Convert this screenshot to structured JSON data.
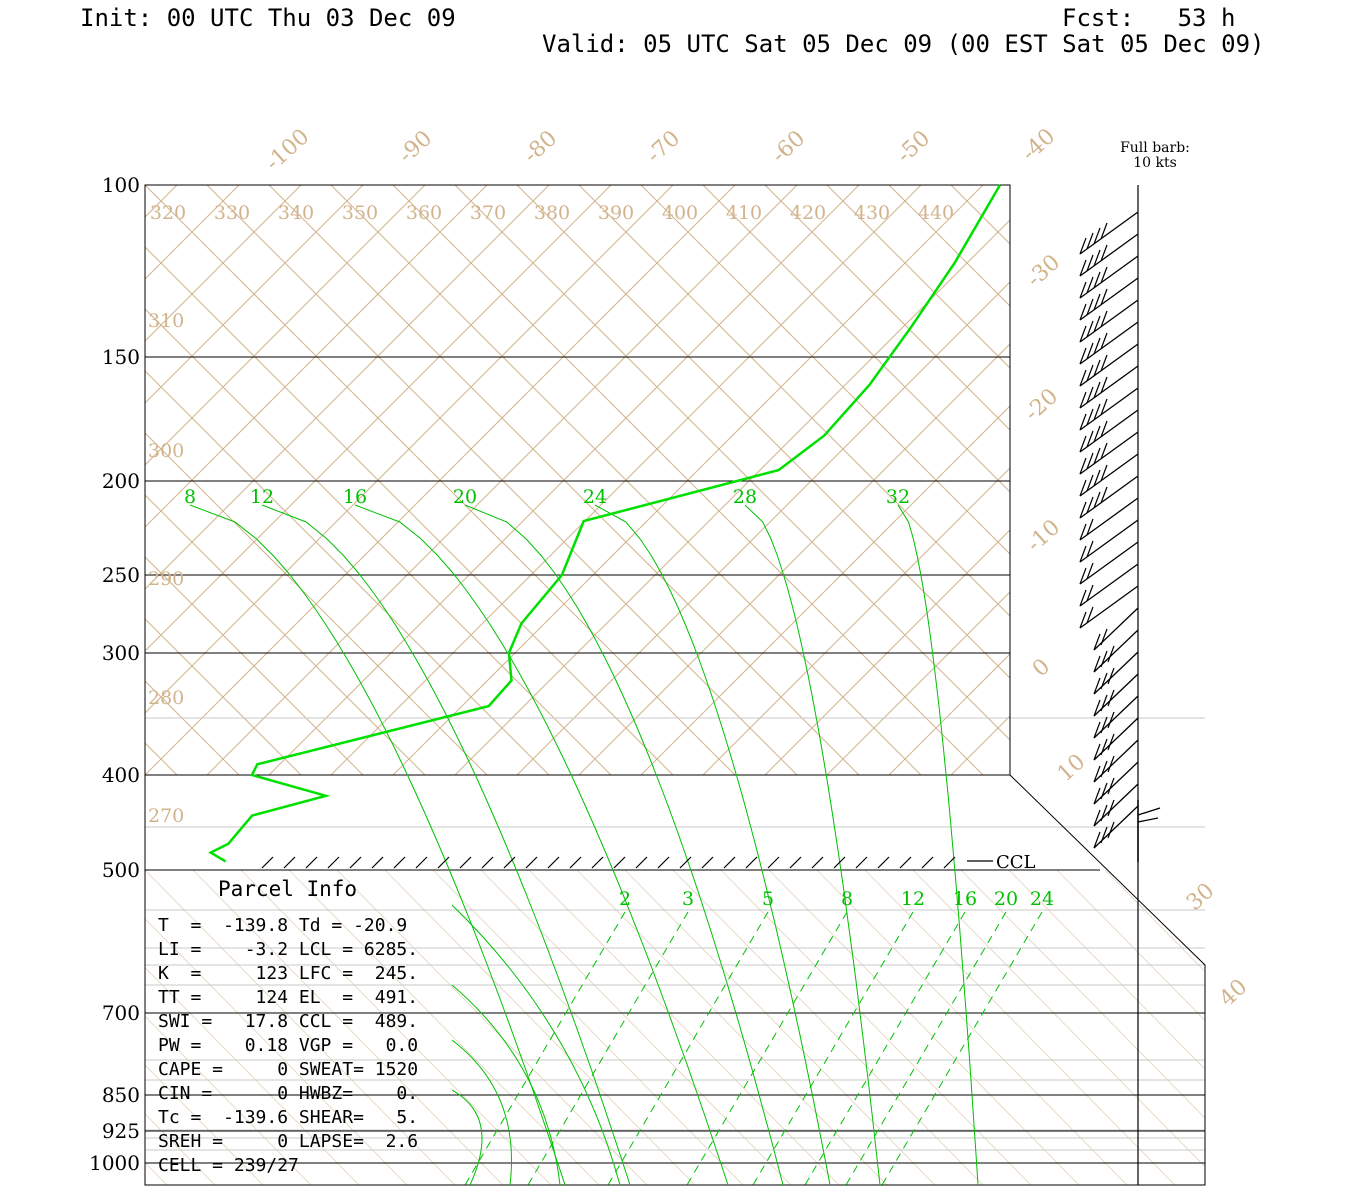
{
  "header": {
    "init": "Init: 00 UTC Thu 03 Dec 09",
    "fcst": "Fcst:   53 h",
    "valid": "Valid: 05 UTC Sat 05 Dec 09 (00 EST Sat 05 Dec 09)"
  },
  "colors": {
    "sounding": "#00e000",
    "mixing_ratio": "#00c000",
    "background_lines": "#d2b48c",
    "axis": "#000000"
  },
  "chart_data": {
    "type": "line",
    "chart_kind": "skew-T log-p sounding",
    "pressure_levels": [
      100,
      150,
      200,
      250,
      300,
      400,
      500,
      700,
      850,
      925,
      1000
    ],
    "pressure_range": [
      100,
      1000
    ],
    "temperature_labels": [
      -100,
      -90,
      -80,
      -70,
      -60,
      -50,
      -40,
      -30,
      -20,
      -10,
      0,
      10,
      30,
      40
    ],
    "theta_top_labels": [
      320,
      330,
      340,
      350,
      360,
      370,
      380,
      390,
      400,
      410,
      420,
      430,
      440
    ],
    "theta_left_labels": [
      310,
      300,
      290,
      280,
      270
    ],
    "moist_adiabat_labels": [
      8,
      12,
      16,
      20,
      24,
      28,
      32
    ],
    "mixing_ratio_labels": [
      2,
      3,
      5,
      8,
      12,
      16,
      20,
      24
    ],
    "barb_legend_line1": "Full barb:",
    "barb_legend_line2": "10 kts",
    "ccl_label": "CCL",
    "sounding_profile": {
      "name": "dewpoint",
      "pressure": [
        100,
        120,
        140,
        160,
        180,
        195,
        220,
        250,
        280,
        300,
        320,
        340,
        390,
        400,
        420,
        440,
        470,
        480,
        490
      ],
      "temperature_c": [
        -17.8,
        -19.0,
        -20.5,
        -22.0,
        -24.0,
        -26.5,
        -40.0,
        -40.1,
        -41.8,
        -41.9,
        -40.9,
        -41.9,
        -58.0,
        -58.1,
        -51.8,
        -56.9,
        -57.9,
        -59.0,
        -57.6
      ]
    },
    "wind_barbs_present": true
  },
  "parcel_info": {
    "title": "Parcel Info",
    "rows": [
      "T  =  -139.8 Td = -20.9",
      "LI =    -3.2 LCL = 6285.",
      "K  =     123 LFC =  245.",
      "TT =     124 EL  =  491.",
      "SWI =   17.8 CCL =  489.",
      "PW =    0.18 VGP =   0.0",
      "CAPE =     0 SWEAT= 1520",
      "CIN =      0 HWBZ=    0.",
      "Tc =  -139.6 SHEAR=   5.",
      "SREH =     0 LAPSE=  2.6",
      "CELL = 239/27"
    ]
  }
}
